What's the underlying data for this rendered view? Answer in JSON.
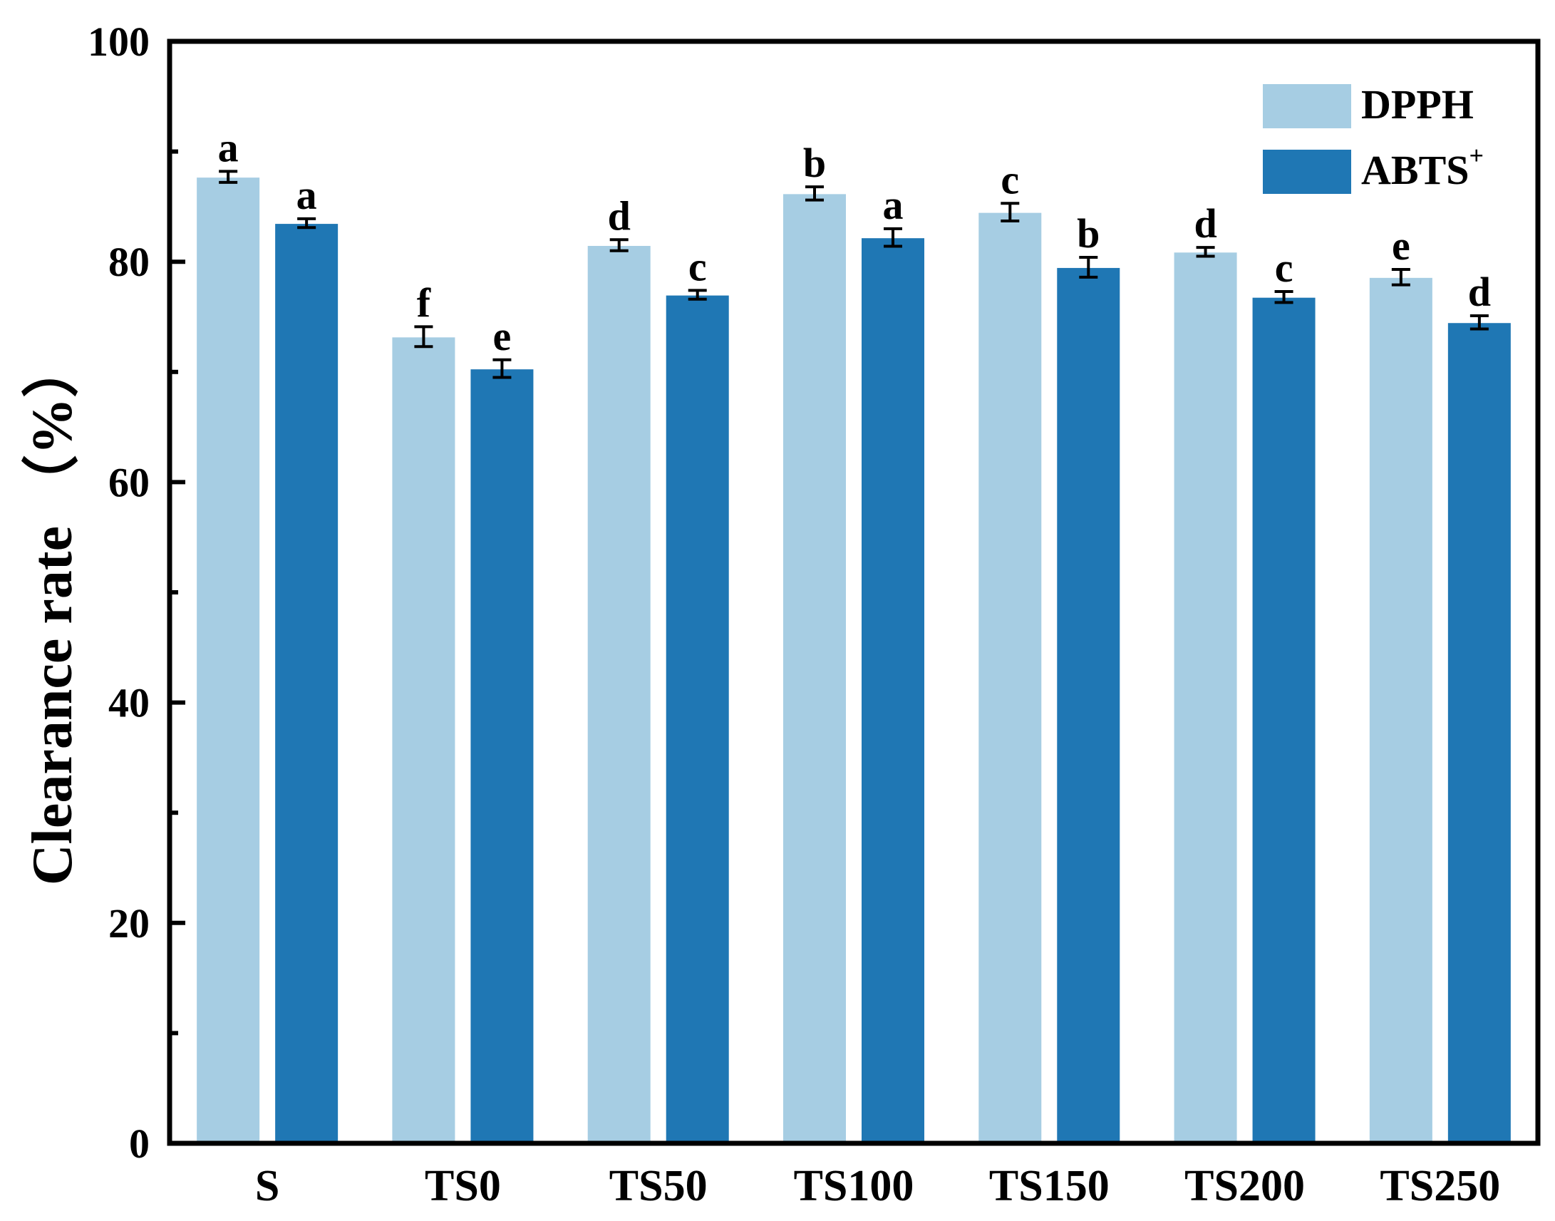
{
  "chart_data": {
    "type": "bar",
    "title": "",
    "xlabel": "",
    "ylabel": "Clearance rate （%）",
    "ylim": [
      0,
      100
    ],
    "yticks": [
      0,
      20,
      40,
      60,
      80,
      100
    ],
    "grid": false,
    "legend_position": "top-right",
    "categories": [
      "S",
      "TS0",
      "TS50",
      "TS100",
      "TS150",
      "TS200",
      "TS250"
    ],
    "series": [
      {
        "name": "DPPH",
        "legend_main": "DPPH",
        "legend_sup": "",
        "color": "#a6cde3",
        "values": [
          87.7,
          73.2,
          81.5,
          86.2,
          84.5,
          80.9,
          78.6
        ],
        "errors": [
          0.5,
          0.9,
          0.5,
          0.6,
          0.8,
          0.4,
          0.7
        ],
        "sig": [
          "a",
          "f",
          "d",
          "b",
          "c",
          "d",
          "e"
        ]
      },
      {
        "name": "ABTS+",
        "legend_main": "ABTS",
        "legend_sup": "+",
        "color": "#1f77b4",
        "values": [
          83.5,
          70.3,
          77.0,
          82.2,
          79.5,
          76.8,
          74.5
        ],
        "errors": [
          0.4,
          0.8,
          0.4,
          0.8,
          0.9,
          0.5,
          0.6
        ],
        "sig": [
          "a",
          "e",
          "c",
          "a",
          "b",
          "c",
          "d"
        ]
      }
    ]
  }
}
